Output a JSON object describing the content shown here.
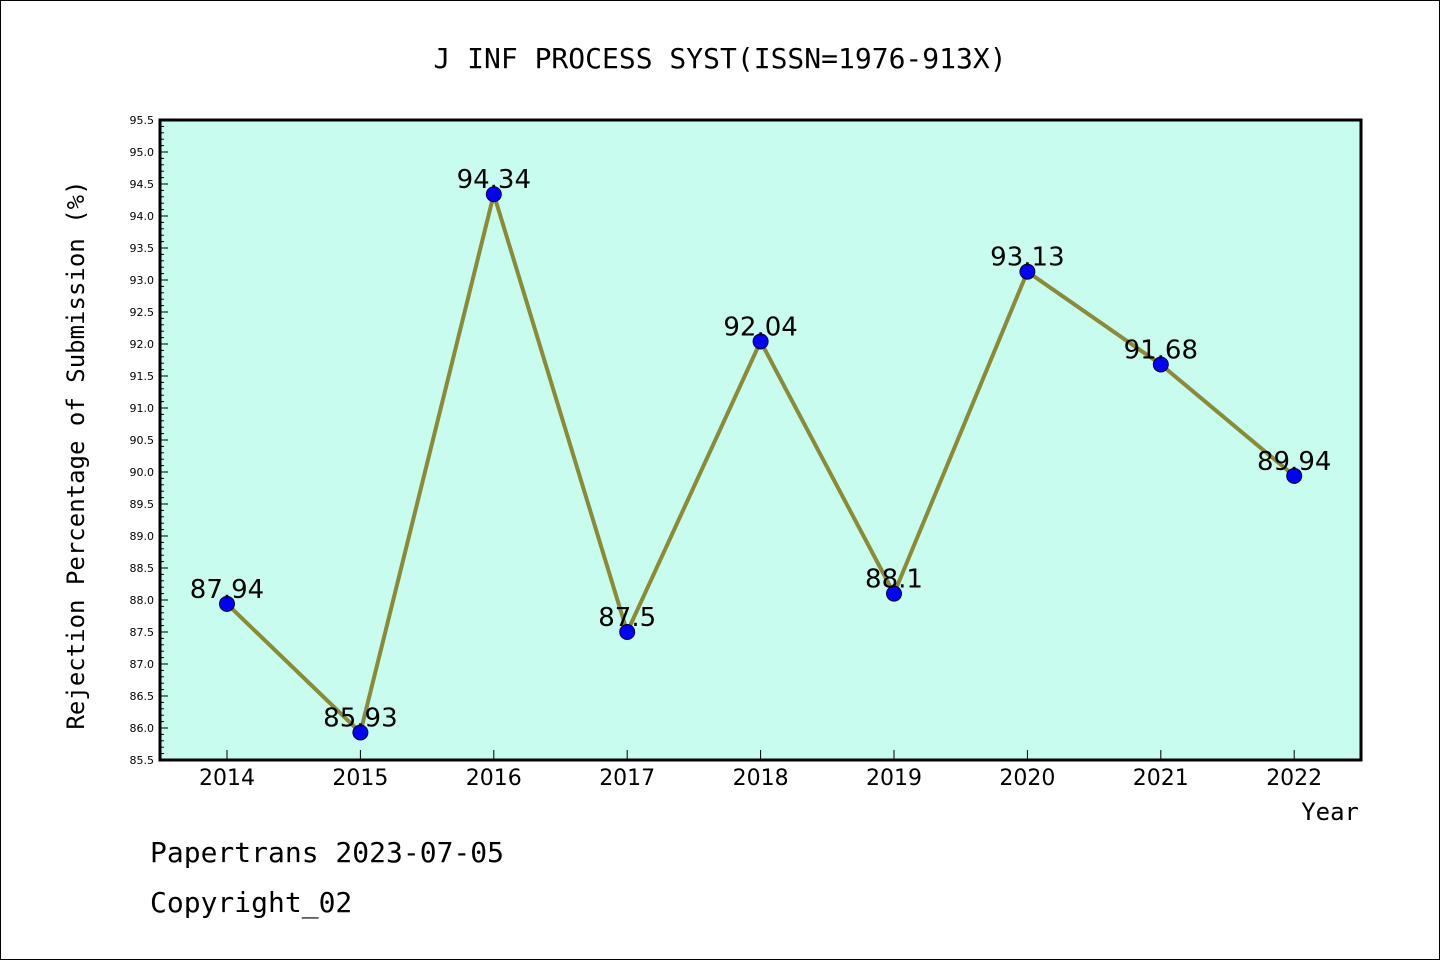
{
  "chart_data": {
    "type": "line",
    "title": "J INF PROCESS SYST(ISSN=1976-913X)",
    "xlabel": "Year",
    "ylabel": "Rejection Percentage of Submission (%)",
    "categories": [
      "2014",
      "2015",
      "2016",
      "2017",
      "2018",
      "2019",
      "2020",
      "2021",
      "2022"
    ],
    "values": [
      87.94,
      85.93,
      94.34,
      87.5,
      92.04,
      88.1,
      93.13,
      91.68,
      89.94
    ],
    "data_labels": [
      "87.94",
      "85.93",
      "94.34",
      "87.5",
      "92.04",
      "88.1",
      "93.13",
      "91.68",
      "89.94"
    ],
    "ylim": [
      85.5,
      95.5
    ],
    "yticks": [
      "85.5",
      "86.0",
      "86.5",
      "87.0",
      "87.5",
      "88.0",
      "88.5",
      "89.0",
      "89.5",
      "90.0",
      "90.5",
      "91.0",
      "91.5",
      "92.0",
      "92.5",
      "93.0",
      "93.5",
      "94.0",
      "94.5",
      "95.0",
      "95.5"
    ],
    "grid": false,
    "legend": "none",
    "colors": {
      "plot_background": "#c8fcee",
      "line": "#8b8a35",
      "marker": "#0000ff"
    }
  },
  "footer": {
    "line1": "Papertrans 2023-07-05",
    "line2": "Copyright_02"
  }
}
